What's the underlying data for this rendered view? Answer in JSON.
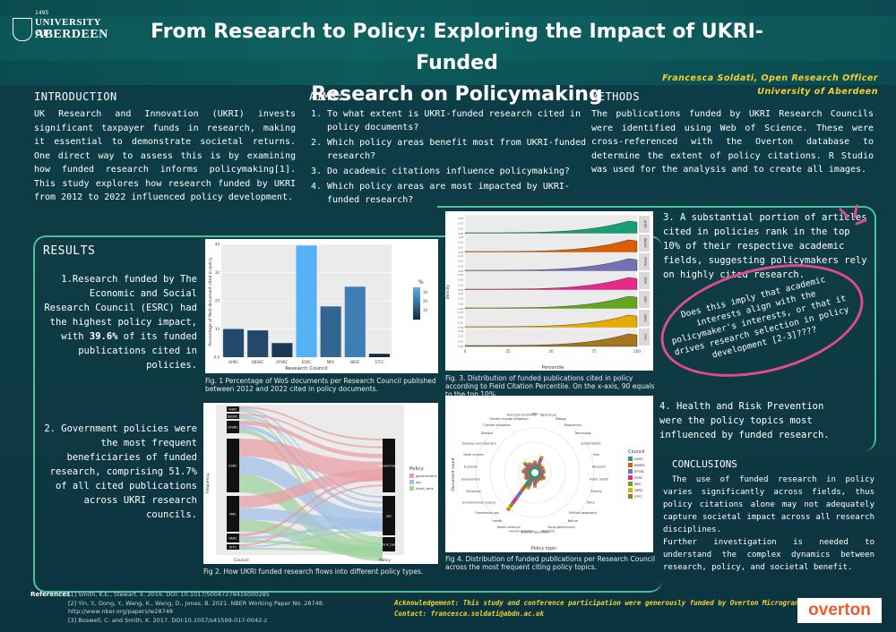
{
  "header": {
    "logo_line1": "UNIVERSITY OF",
    "logo_line2": "ABERDEEN",
    "logo_year": "1495",
    "title_line1": "From Research to Policy: Exploring the Impact of UKRI-Funded",
    "title_line2": "Research on Policymaking",
    "author_line1": "Francesca Soldati, Open Research Officer",
    "author_line2": "University of Aberdeen"
  },
  "intro": {
    "heading": "INTRODUCTION",
    "text": "UK Research and Innovation (UKRI) invests significant taxpayer funds in research, making it essential to demonstrate societal returns. One direct way to assess this is by examining how funded research informs policymaking[1]. This study explores how research funded by UKRI from 2012 to 2022 influenced policy development."
  },
  "aims": {
    "heading": "AIMS:",
    "items": [
      "To what extent is UKRI-funded research cited in policy documents?",
      "Which policy areas benefit most from UKRI-funded research?",
      "Do academic citations influence policymaking?",
      "Which policy areas are most impacted by UKRI-funded research?"
    ]
  },
  "methods": {
    "heading": "METHODS",
    "text": "The publications funded by UKRI Research Councils were identified using Web of Science. These were cross-referenced with the Overton database to determine the extent of policy citations. R Studio was used for the analysis and to create all images."
  },
  "results": {
    "heading": "RESULTS",
    "finding1_pre": "1.Research funded by The Economic and Social Research Council (ESRC) had the highest policy impact, with ",
    "finding1_bold": "39.6%",
    "finding1_post": " of its funded publications cited in policies.",
    "finding2": "2. Government policies were the most frequent beneficiaries of funded research, comprising 51.7% of all cited publications across UKRI research councils.",
    "finding3": "3. A substantial portion of articles cited in policies rank in the top 10% of their respective academic fields, suggesting policymakers rely on highly cited research.",
    "finding4": "4. Health and Risk Prevention were the policy topics most influenced by funded research.",
    "question": "Does this imply that academic interests align with the policymaker's interests, or that it drives research selection in policy development [2-3]????"
  },
  "figures": {
    "fig1_caption": "Fig. 1 Percentage of WoS documents per Research Council published between 2012 and 2022 cited in policy documents.",
    "fig2_caption": "Fig 2. How UKRI funded research flows into different policy types.",
    "fig3_caption": "Fig. 3. Distribution of funded publications cited in policy according to Field Citation Percentile. On the x-axis, 90 equals to the top 10%.",
    "fig4_caption": "Fig 4. Distribution of funded publications per Research Council across the most frequent citing policy topics."
  },
  "chart_data": [
    {
      "type": "bar",
      "categories": [
        "AHRC",
        "BBSRC",
        "EPSRC",
        "ESRC",
        "MRC",
        "NERC",
        "STFC"
      ],
      "values": [
        10,
        9.5,
        5,
        39.6,
        18,
        25,
        1.2
      ],
      "xlabel": "Research Council",
      "ylabel": "Percentage of WoS document cited in policy",
      "ylim": [
        0,
        40
      ],
      "yticks": [
        "0.0",
        "10",
        "20",
        "30",
        "40"
      ],
      "legend_title": "%",
      "legend_ticks": [
        "30",
        "20",
        "10"
      ]
    },
    {
      "type": "area",
      "xlabel": "Percentile",
      "ylabel": "density",
      "x_ticks": [
        "0",
        "25",
        "50",
        "75",
        "100"
      ],
      "series": [
        {
          "name": "AHRC",
          "color": "#1a9e77"
        },
        {
          "name": "BBSRC",
          "color": "#d95f02"
        },
        {
          "name": "EPSRC",
          "color": "#7570b3"
        },
        {
          "name": "ESRC",
          "color": "#e7298a"
        },
        {
          "name": "MRC",
          "color": "#66a61e"
        },
        {
          "name": "NERC",
          "color": "#e6ab02"
        },
        {
          "name": "STFC",
          "color": "#a6761d"
        }
      ]
    }
  ],
  "fig2": {
    "councils": [
      "AHRC",
      "BBSRC",
      "EPSRC",
      "ESRC",
      "MRC",
      "NERC",
      "STFC"
    ],
    "policies": [
      "government",
      "igo",
      "think_tank"
    ],
    "legend_title": "Policy",
    "x_left": "Council",
    "x_right": "Policy",
    "ylabel": "Frequency"
  },
  "fig4": {
    "ylabel": "Document count",
    "xlabel": "Policy topic",
    "topics": [
      "Risk",
      "Agriculture",
      "Biology",
      "Biodiversity",
      "Technology",
      "Sustainability",
      "Pain",
      "Research",
      "Public health",
      "Poverty",
      "Policy",
      "Political geography",
      "Nature",
      "Social government",
      "Medicine",
      "Medical specialties",
      "Human activities",
      "Health sciences",
      "Health",
      "Greenhouse gas",
      "Environmental science",
      "Education",
      "Employment",
      "Economy",
      "Earth science",
      "Diseases and disorders",
      "Disease",
      "Climate mitigation",
      "Climate change mitigation",
      "Branches of science"
    ],
    "legend_title": "Council",
    "councils": [
      "AHRC",
      "BBSRC",
      "EPSRC",
      "ESRC",
      "MRC",
      "NERC",
      "STFC"
    ]
  },
  "conclusions": {
    "heading": "CONCLUSIONS",
    "p1": "The use of funded research in policy varies significantly across fields, thus policy citations alone may not adequately capture societal impact across all research disciplines.",
    "p2": "Further investigation is needed to understand the complex dynamics between research, policy, and societal benefit."
  },
  "references": {
    "label": "References",
    "items": [
      "[1] Smith, K.E., Stewart, E. 2016. DOI: 10.1017/S0047279416000285",
      "[2] Yin, Y., Dong, Y., Wang, K., Wang, D., Jones, B. 2021. NBER Working Paper No. 28748.",
      "http://www.nber.org/papers/w28748",
      "[3] Boswell, C. and Smith, K. 2017. DOI:10.1057/s41599-017-0042-z"
    ]
  },
  "acknowledgement": {
    "line1": "Acknowledgement: This study and conference participation were generously funded by Overton Microgrant",
    "line2": "Contact: francesca.soldati@abdn.ac.uk",
    "logo": "overton"
  }
}
